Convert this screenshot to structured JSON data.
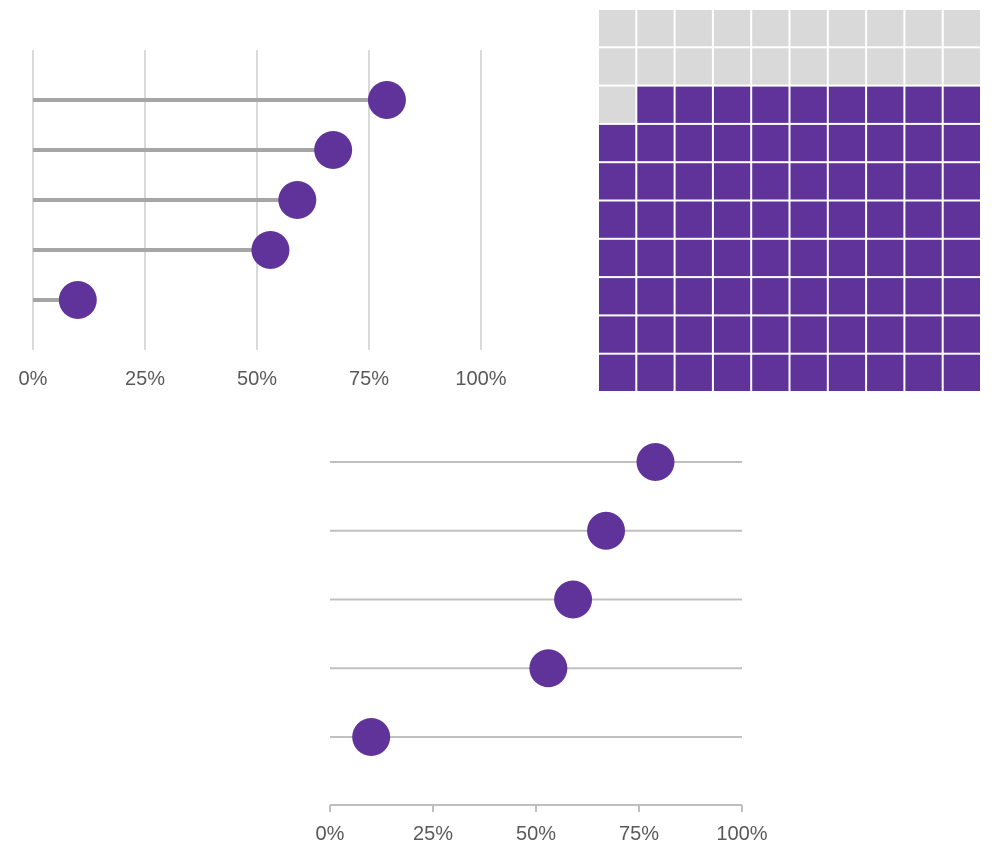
{
  "colors": {
    "accent": "#5f3399",
    "stem": "#a6a6a6",
    "grid": "#d9d9d9",
    "axis": "#bfbfbf",
    "track": "#c0c0c0",
    "waffle_empty": "#d9d9d9",
    "tick_text": "#595959"
  },
  "chart_data": [
    {
      "type": "lollipop",
      "orientation": "horizontal",
      "values": [
        0.79,
        0.67,
        0.59,
        0.53,
        0.1
      ],
      "xlim": [
        0,
        1
      ],
      "x_ticks": [
        "0%",
        "25%",
        "50%",
        "75%",
        "100%"
      ],
      "grid": "vertical",
      "title": "",
      "xlabel": "",
      "ylabel": ""
    },
    {
      "type": "waffle",
      "rows": 10,
      "cols": 10,
      "filled": 79,
      "total": 100,
      "title": ""
    },
    {
      "type": "dot",
      "orientation": "horizontal",
      "values": [
        0.79,
        0.67,
        0.59,
        0.53,
        0.1
      ],
      "xlim": [
        0,
        1
      ],
      "x_ticks": [
        "0%",
        "25%",
        "50%",
        "75%",
        "100%"
      ],
      "grid": "off",
      "title": "",
      "xlabel": "",
      "ylabel": ""
    }
  ]
}
